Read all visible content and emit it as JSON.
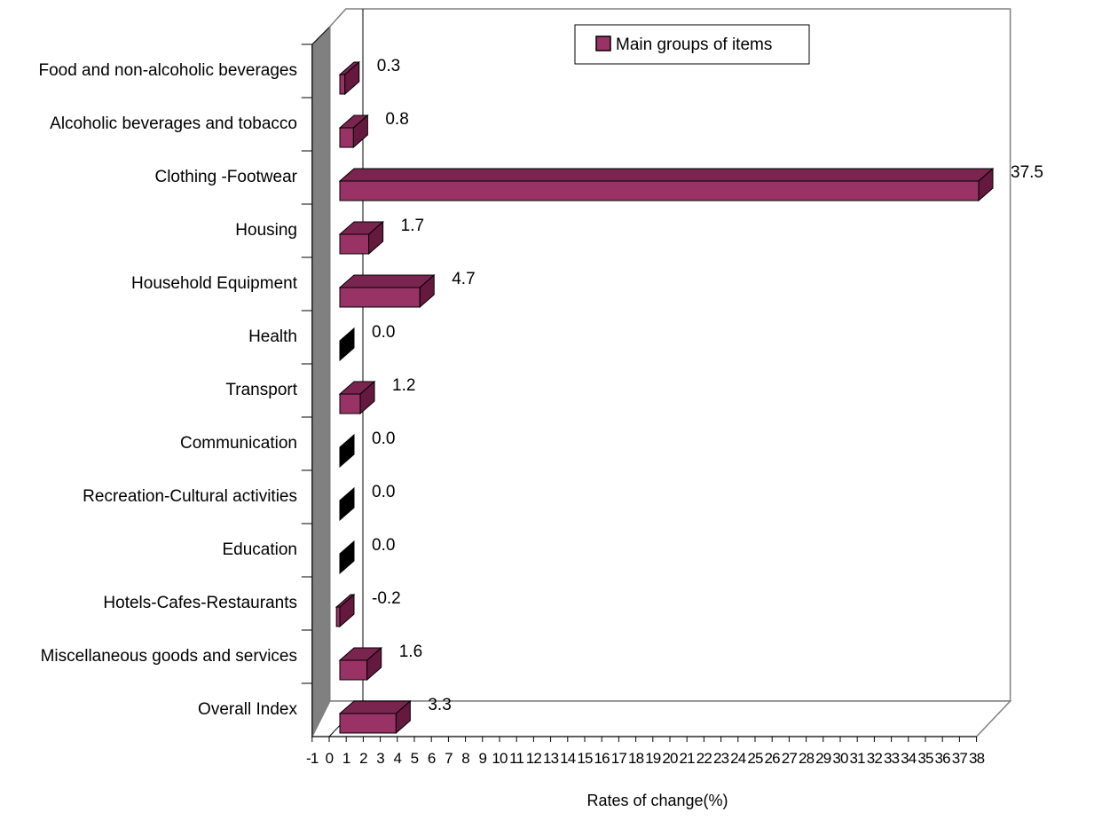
{
  "chart_data": {
    "type": "bar",
    "orientation": "horizontal",
    "style": "3d",
    "categories": [
      "Food and non-alcoholic beverages",
      "Alcoholic beverages and tobacco",
      "Clothing -Footwear",
      "Housing",
      "Household Equipment",
      "Health",
      "Transport",
      "Communication",
      "Recreation-Cultural activities",
      "Education",
      "Hotels-Cafes-Restaurants",
      "Miscellaneous goods and services",
      "Overall Index"
    ],
    "series": [
      {
        "name": "Main groups of items",
        "color": "#993366",
        "values": [
          0.3,
          0.8,
          37.5,
          1.7,
          4.7,
          0.0,
          1.2,
          0.0,
          0.0,
          0.0,
          -0.2,
          1.6,
          3.3
        ],
        "value_labels": [
          "0.3",
          "0.8",
          "37.5",
          "1.7",
          "4.7",
          "0.0",
          "1.2",
          "0.0",
          "0.0",
          "0.0",
          "-0.2",
          "1.6",
          "3.3"
        ]
      }
    ],
    "xlabel": "Rates of change(%)",
    "ylabel": "",
    "xlim": [
      -1,
      38
    ],
    "x_ticks": [
      -1,
      0,
      1,
      2,
      3,
      4,
      5,
      6,
      7,
      8,
      9,
      10,
      11,
      12,
      13,
      14,
      15,
      16,
      17,
      18,
      19,
      20,
      21,
      22,
      23,
      24,
      25,
      26,
      27,
      28,
      29,
      30,
      31,
      32,
      33,
      34,
      35,
      36,
      37,
      38
    ],
    "legend_position": "top-center",
    "grid": false,
    "colors": {
      "bar_front": "#993366",
      "bar_top": "#7a2550",
      "bar_side": "#66193f",
      "wall": "#808080",
      "outline": "#000000",
      "frame": "#808080"
    }
  }
}
